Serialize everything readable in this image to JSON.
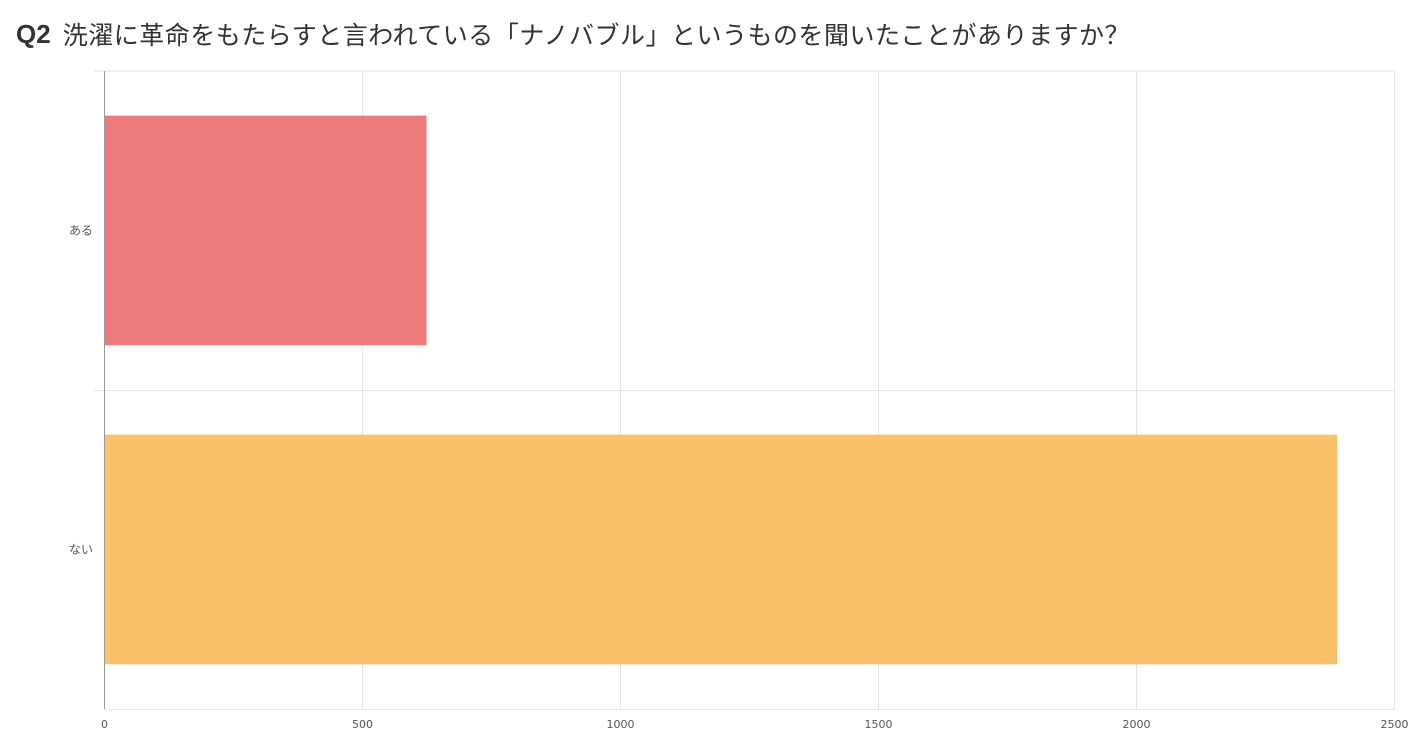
{
  "question": {
    "number": "Q2",
    "text": "洗濯に革命をもたらすと言われている「ナノバブル」というものを聞いたことがありますか？"
  },
  "chart_data": {
    "type": "bar",
    "orientation": "horizontal",
    "categories": [
      "ある",
      "ない"
    ],
    "values": [
      625,
      2390
    ],
    "colors": [
      "#ED7B7B",
      "#FCC26A"
    ],
    "xlim": [
      0,
      2500
    ],
    "xticks": [
      0,
      500,
      1000,
      1500,
      2000,
      2500
    ],
    "grid": true
  }
}
